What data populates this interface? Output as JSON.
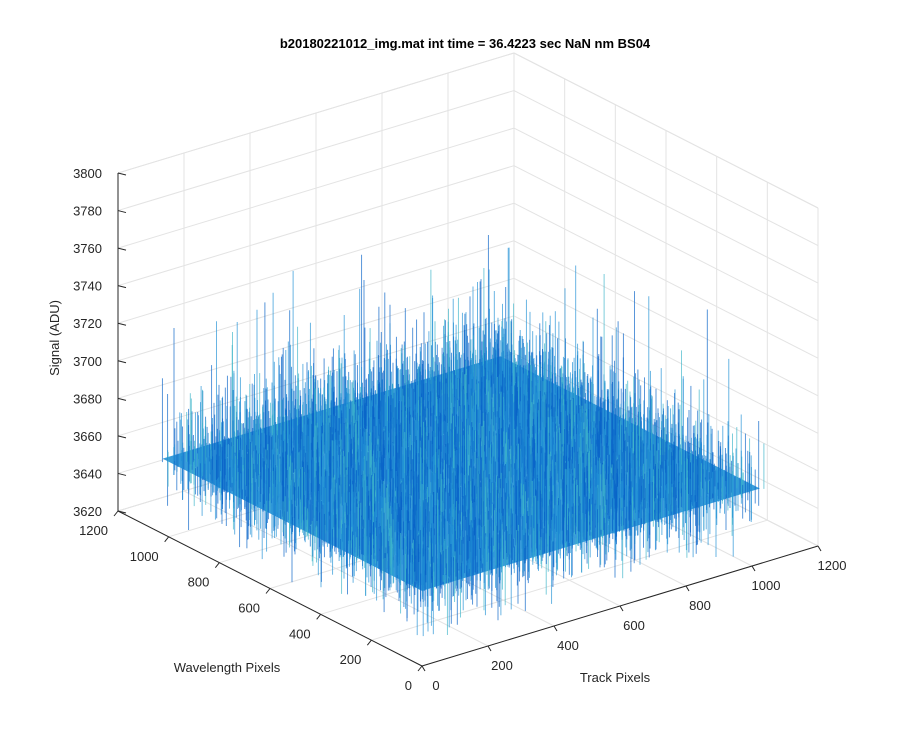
{
  "chart_data": {
    "type": "surface",
    "title": "b20180221012_img.mat int time = 36.4223 sec  NaN nm BS04",
    "xlabel": "Track Pixels",
    "ylabel": "Wavelength Pixels",
    "zlabel": "Signal (ADU)",
    "xlim": [
      0,
      1200
    ],
    "ylim": [
      0,
      1200
    ],
    "zlim": [
      3620,
      3800
    ],
    "xticks": [
      0,
      200,
      400,
      600,
      800,
      1000,
      1200
    ],
    "yticks": [
      0,
      200,
      400,
      600,
      800,
      1000,
      1200
    ],
    "zticks": [
      3620,
      3640,
      3660,
      3680,
      3700,
      3720,
      3740,
      3760,
      3780,
      3800
    ],
    "data_extent": {
      "x": [
        0,
        1024
      ],
      "y": [
        0,
        1024
      ]
    },
    "signal_mean": 3660,
    "signal_noise_range": [
      3625,
      3745
    ],
    "grid": true,
    "view": "3d-isometric",
    "colors": {
      "surface_low": "#0a64c8",
      "surface_mid": "#2391d6",
      "surface_high": "#3fb5c9",
      "axis": "#262626",
      "grid": "#e3e3e3"
    }
  }
}
